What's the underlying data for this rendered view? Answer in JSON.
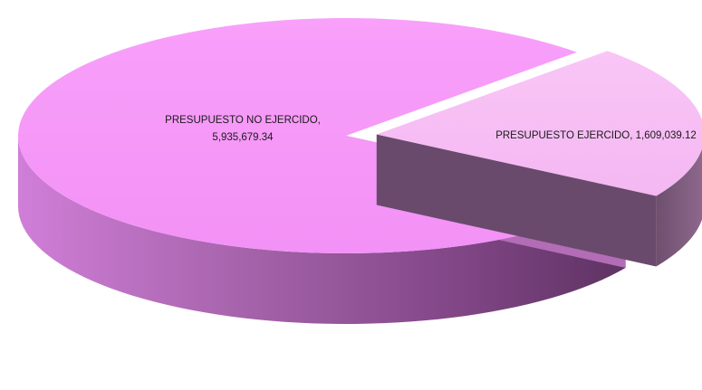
{
  "chart_data": {
    "type": "pie",
    "style": "3d-exploded",
    "slices": [
      {
        "label": "PRESUPUESTO NO EJERCIDO",
        "value": 5935679.34,
        "value_text": "5,935,679.34",
        "color": "#F797F9",
        "exploded": false
      },
      {
        "label": "PRESUPUESTO EJERCIDO",
        "value": 1609039.12,
        "value_text": "1,609,039.12",
        "color": "#F7BDF4",
        "exploded": true
      }
    ]
  },
  "labels": {
    "no_ejercido_line1": "PRESUPUESTO NO EJERCIDO,",
    "no_ejercido_line2": "5,935,679.34",
    "ejercido": "PRESUPUESTO EJERCIDO, 1,609,039.12"
  }
}
